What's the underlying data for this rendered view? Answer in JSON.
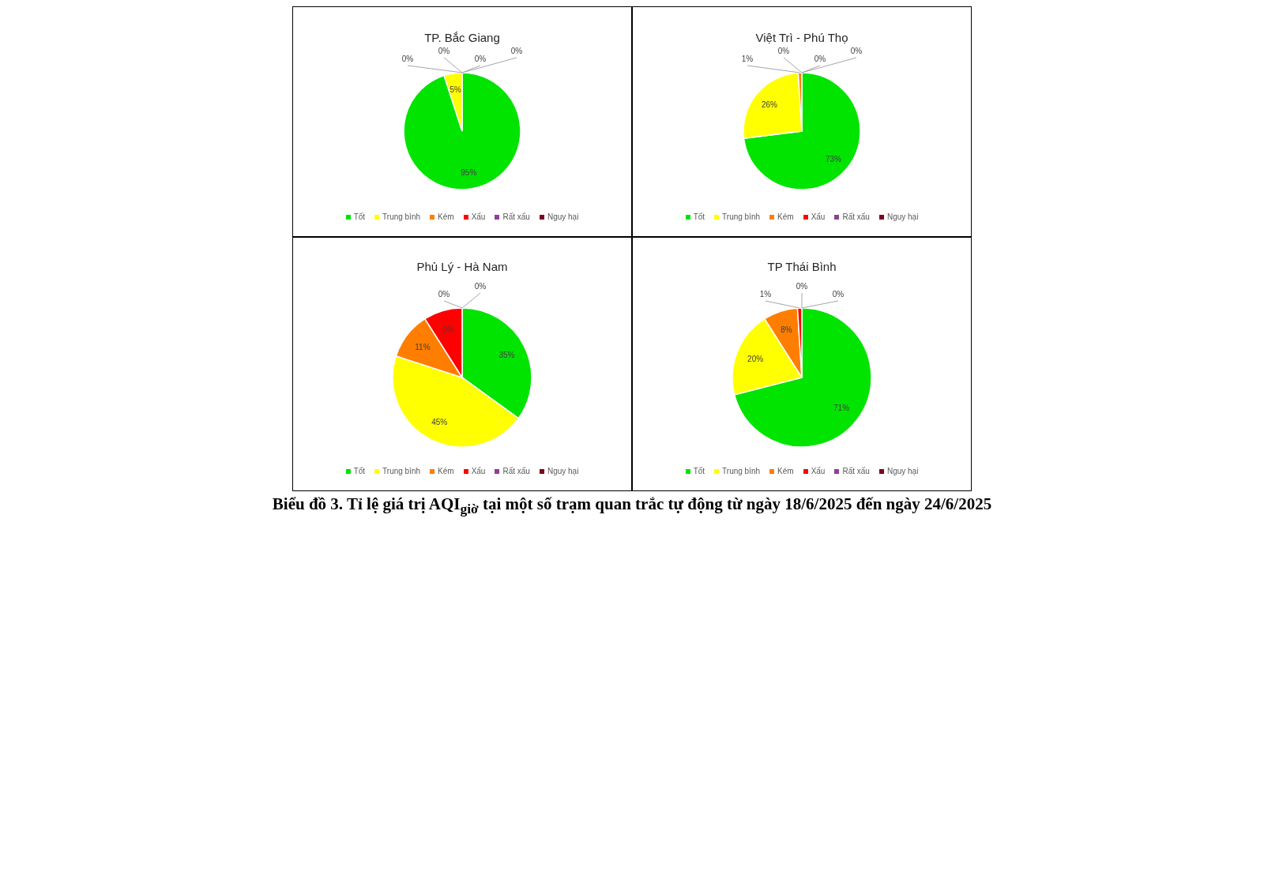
{
  "chart_data": [
    {
      "type": "pie",
      "title": "TP. Bắc Giang",
      "categories": [
        "Tốt",
        "Trung bình",
        "Kém",
        "Xấu",
        "Rất xấu",
        "Nguy hại"
      ],
      "values": [
        95,
        5,
        0,
        0,
        0,
        0
      ],
      "value_labels": [
        "95%",
        "5%",
        "0%",
        "0%",
        "0%",
        "0%"
      ],
      "colors": [
        "#00e400",
        "#ffff00",
        "#ff7e00",
        "#ff0000",
        "#8f3f97",
        "#7e0023"
      ],
      "legend": "bottom"
    },
    {
      "type": "pie",
      "title": "Việt Trì - Phú Thọ",
      "categories": [
        "Tốt",
        "Trung bình",
        "Kém",
        "Xấu",
        "Rất xấu",
        "Nguy hại"
      ],
      "values": [
        73,
        26,
        1,
        0,
        0,
        0
      ],
      "value_labels": [
        "73%",
        "26%",
        "1%",
        "0%",
        "0%",
        "0%"
      ],
      "colors": [
        "#00e400",
        "#ffff00",
        "#ff7e00",
        "#ff0000",
        "#8f3f97",
        "#7e0023"
      ],
      "legend": "bottom"
    },
    {
      "type": "pie",
      "title": "Phủ Lý - Hà Nam",
      "categories": [
        "Tốt",
        "Trung bình",
        "Kém",
        "Xấu",
        "Rất xấu",
        "Nguy hại"
      ],
      "values": [
        35,
        45,
        11,
        9,
        0,
        0
      ],
      "value_labels": [
        "35%",
        "45%",
        "11%",
        "9%",
        "0%",
        "0%"
      ],
      "colors": [
        "#00e400",
        "#ffff00",
        "#ff7e00",
        "#ff0000",
        "#8f3f97",
        "#7e0023"
      ],
      "legend": "bottom"
    },
    {
      "type": "pie",
      "title": "TP Thái Bình",
      "categories": [
        "Tốt",
        "Trung bình",
        "Kém",
        "Xấu",
        "Rất xấu",
        "Nguy hại"
      ],
      "values": [
        71,
        20,
        8,
        1,
        0,
        0
      ],
      "value_labels": [
        "71%",
        "20%",
        "8%",
        "1%",
        "0%",
        "0%"
      ],
      "colors": [
        "#00e400",
        "#ffff00",
        "#ff7e00",
        "#ff0000",
        "#8f3f97",
        "#7e0023"
      ],
      "legend": "bottom",
      "annotations": [
        "Biểu đồ 3.  Tỉ lệ giá trị AQI$_{giờ}$ tại một số trạm quan trắc tự động từ ngày 18/6/2025 đến ngày 24/6/2025"
      ]
    }
  ]
}
